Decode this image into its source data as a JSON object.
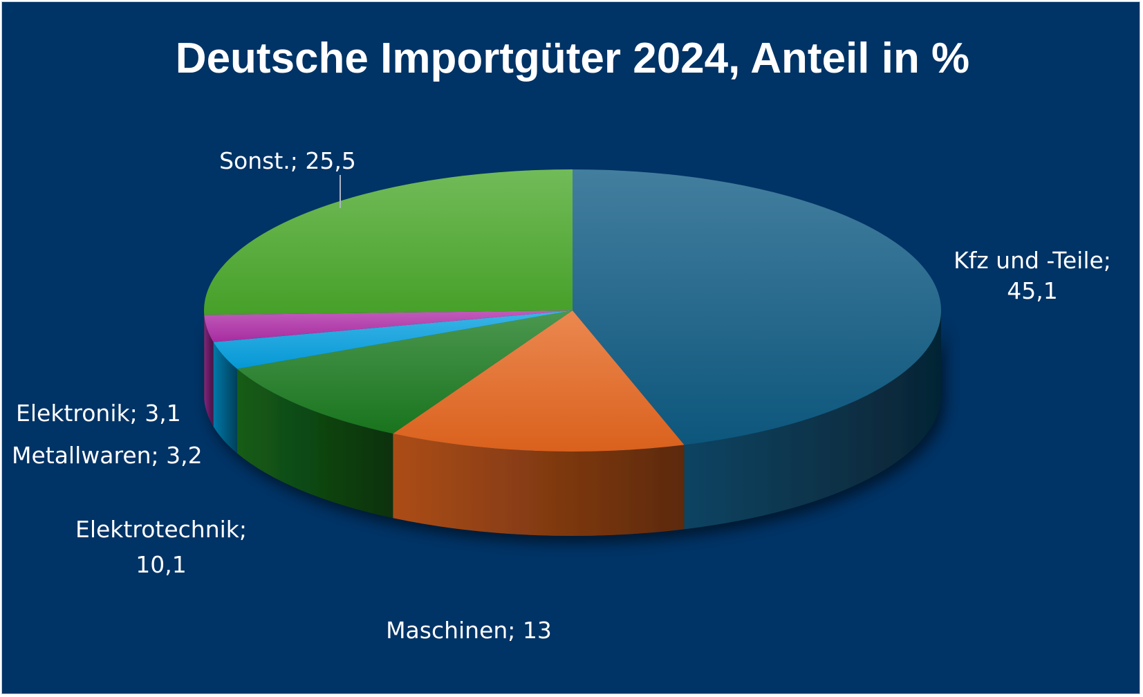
{
  "chart_data": {
    "type": "pie",
    "title": "Deutsche Importgüter 2024, Anteil in %",
    "three_d": true,
    "slices": [
      {
        "name": "Kfz und -Teile",
        "value": 45.1,
        "label_lines": [
          "Kfz und -Teile;",
          "45,1"
        ],
        "color": "#0e5a82"
      },
      {
        "name": "Maschinen",
        "value": 13,
        "label_lines": [
          "Maschinen; 13"
        ],
        "color": "#e5661f"
      },
      {
        "name": "Elektrotechnik",
        "value": 10.1,
        "label_lines": [
          "Elektrotechnik;",
          "10,1"
        ],
        "color": "#1a7a1e"
      },
      {
        "name": "Metallwaren",
        "value": 3.2,
        "label_lines": [
          "Metallwaren; 3,2"
        ],
        "color": "#05a0e0"
      },
      {
        "name": "Elektronik",
        "value": 3.1,
        "label_lines": [
          "Elektronik; 3,1"
        ],
        "color": "#b02ea8"
      },
      {
        "name": "Sonst.",
        "value": 25.5,
        "label_lines": [
          "Sonst.; 25,5"
        ],
        "color": "#4aa82a"
      }
    ]
  }
}
